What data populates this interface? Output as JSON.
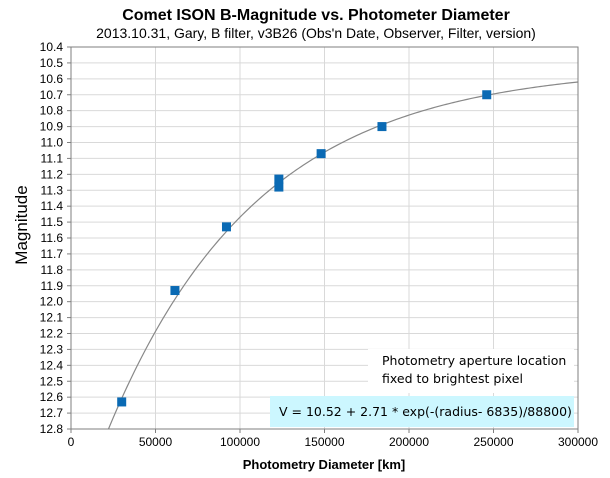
{
  "chart_data": {
    "type": "scatter",
    "title": "Comet ISON B-Magnitude vs. Photometer Diameter",
    "subtitle": "2013.10.31,  Gary,  B filter,  v3B26 (Obs'n Date, Observer, Filter, version)",
    "xlabel": "Photometry Diameter  [km]",
    "ylabel": "Magnitude",
    "xlim": [
      0,
      300000
    ],
    "ylim": [
      10.4,
      12.8
    ],
    "y_reversed": true,
    "x_ticks": [
      "0",
      "50000",
      "100000",
      "150000",
      "200000",
      "250000",
      "300000"
    ],
    "y_ticks": [
      "10.4",
      "10.5",
      "10.6",
      "10.7",
      "10.8",
      "10.9",
      "11.0",
      "11.1",
      "11.2",
      "11.3",
      "11.4",
      "11.5",
      "11.6",
      "11.7",
      "11.8",
      "11.9",
      "12.0",
      "12.1",
      "12.2",
      "12.3",
      "12.4",
      "12.5",
      "12.6",
      "12.7",
      "12.8"
    ],
    "grid": true,
    "points": [
      {
        "x": 30000,
        "y": 12.63
      },
      {
        "x": 61500,
        "y": 11.93
      },
      {
        "x": 92000,
        "y": 11.53
      },
      {
        "x": 123000,
        "y": 11.23
      },
      {
        "x": 123000,
        "y": 11.28
      },
      {
        "x": 148000,
        "y": 11.07
      },
      {
        "x": 184000,
        "y": 10.9
      },
      {
        "x": 246000,
        "y": 10.7
      }
    ],
    "fit": {
      "a": 10.52,
      "b": 2.71,
      "x0": 6835,
      "scale": 88800
    },
    "annotations": [
      "Photometry aperture location",
      "fixed to brightest pixel",
      "V = 10.52 + 2.71 * exp(-(radius- 6835)/88800)"
    ],
    "colors": {
      "marker": "#0a6ab4",
      "fit_line": "#888888",
      "grid": "#d9d9d9",
      "formula_bg": "#ccf7ff"
    }
  }
}
